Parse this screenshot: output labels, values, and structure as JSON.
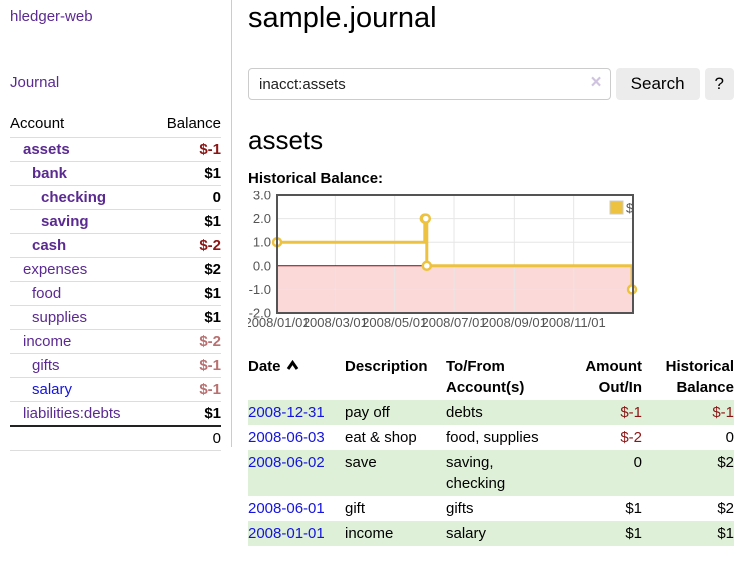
{
  "sidebar": {
    "brand": "hledger-web",
    "journal_label": "Journal",
    "accounts_table": {
      "headers": [
        "Account",
        "Balance"
      ],
      "rows": [
        {
          "name": "assets",
          "depth": 1,
          "bold": true,
          "link_color": "purple",
          "balance": "$-1",
          "balance_style": "neg-strong"
        },
        {
          "name": "bank",
          "depth": 2,
          "bold": true,
          "link_color": "purple",
          "balance": "$1",
          "balance_style": ""
        },
        {
          "name": "checking",
          "depth": 3,
          "bold": true,
          "link_color": "purple",
          "balance": "0",
          "balance_style": ""
        },
        {
          "name": "saving",
          "depth": 3,
          "bold": true,
          "link_color": "purple",
          "balance": "$1",
          "balance_style": ""
        },
        {
          "name": "cash",
          "depth": 2,
          "bold": true,
          "link_color": "purple",
          "balance": "$-2",
          "balance_style": "neg-strong"
        },
        {
          "name": "expenses",
          "depth": 1,
          "bold": false,
          "link_color": "purple",
          "balance": "$2",
          "balance_style": ""
        },
        {
          "name": "food",
          "depth": 2,
          "bold": false,
          "link_color": "purple",
          "balance": "$1",
          "balance_style": ""
        },
        {
          "name": "supplies",
          "depth": 2,
          "bold": false,
          "link_color": "purple",
          "balance": "$1",
          "balance_style": ""
        },
        {
          "name": "income",
          "depth": 1,
          "bold": false,
          "link_color": "purple",
          "balance": "$-2",
          "balance_style": "neg-soft"
        },
        {
          "name": "gifts",
          "depth": 2,
          "bold": false,
          "link_color": "purple",
          "balance": "$-1",
          "balance_style": "neg-soft"
        },
        {
          "name": "salary",
          "depth": 2,
          "bold": false,
          "link_color": "blue",
          "balance": "$-1",
          "balance_style": "neg-soft"
        },
        {
          "name": "liabilities:debts",
          "depth": 1,
          "bold": false,
          "link_color": "purple",
          "balance": "$1",
          "balance_style": ""
        }
      ],
      "total": "0"
    }
  },
  "header": {
    "title": "sample.journal"
  },
  "search": {
    "value": "inacct:assets",
    "clear_icon": "×",
    "button_label": "Search",
    "help_label": "?"
  },
  "account_page": {
    "title": "assets",
    "chart_label": "Historical Balance:"
  },
  "chart_data": {
    "type": "line",
    "step": true,
    "title": "Historical Balance:",
    "series": [
      {
        "name": "$",
        "color": "#edc240",
        "points": [
          [
            "2008-01-01",
            1
          ],
          [
            "2008-06-01",
            2
          ],
          [
            "2008-06-02",
            2
          ],
          [
            "2008-06-03",
            0
          ],
          [
            "2008-12-31",
            -1
          ]
        ]
      }
    ],
    "ylim": [
      -2,
      3
    ],
    "y_ticks": [
      3,
      2,
      1,
      0,
      -1,
      -2
    ],
    "y_tick_labels": [
      "3.0",
      "2.0",
      "1.0",
      "0.0",
      "-1.0",
      "-2.0"
    ],
    "x_ticks": [
      {
        "date": "2008-01-01",
        "label": "2008/01/01"
      },
      {
        "date": "2008-03-01",
        "label": "2008/03/01"
      },
      {
        "date": "2008-05-01",
        "label": "2008/05/01"
      },
      {
        "date": "2008-07-01",
        "label": "2008/07/01"
      },
      {
        "date": "2008-09-01",
        "label": "2008/09/01"
      },
      {
        "date": "2008-11-01",
        "label": "2008/11/01"
      }
    ],
    "x_range": [
      "2008-01-01",
      "2009-01-01"
    ],
    "legend": {
      "label": "$",
      "position": "top-right",
      "box_color": "#edc240"
    },
    "grid": true,
    "colors": {
      "line": "#edc240",
      "marker_fill": "#ffffff",
      "negative_region": "#fbd9d9",
      "zero_line": "#8b0000",
      "border": "#545454",
      "gridline": "#e6e6e6",
      "tick_text": "#545454"
    }
  },
  "register": {
    "headers": [
      {
        "label": "Date",
        "align": "left",
        "sorted": "asc"
      },
      {
        "label": "Description",
        "align": "left"
      },
      {
        "label": "To/From Account(s)",
        "align": "left"
      },
      {
        "label": "Amount Out/In",
        "align": "right"
      },
      {
        "label": "Historical Balance",
        "align": "right"
      }
    ],
    "rows": [
      {
        "date": "2008-12-31",
        "description": "pay off",
        "accounts": "debts",
        "amount": "$-1",
        "amount_neg": true,
        "balance": "$-1",
        "balance_neg": true,
        "shaded": true
      },
      {
        "date": "2008-06-03",
        "description": "eat & shop",
        "accounts": "food, supplies",
        "amount": "$-2",
        "amount_neg": true,
        "balance": "0",
        "balance_neg": false,
        "shaded": false
      },
      {
        "date": "2008-06-02",
        "description": "save",
        "accounts": "saving, checking",
        "amount": "0",
        "amount_neg": false,
        "balance": "$2",
        "balance_neg": false,
        "shaded": true
      },
      {
        "date": "2008-06-01",
        "description": "gift",
        "accounts": "gifts",
        "amount": "$1",
        "amount_neg": false,
        "balance": "$2",
        "balance_neg": false,
        "shaded": false
      },
      {
        "date": "2008-01-01",
        "description": "income",
        "accounts": "salary",
        "amount": "$1",
        "amount_neg": false,
        "balance": "$1",
        "balance_neg": false,
        "shaded": true
      }
    ]
  }
}
